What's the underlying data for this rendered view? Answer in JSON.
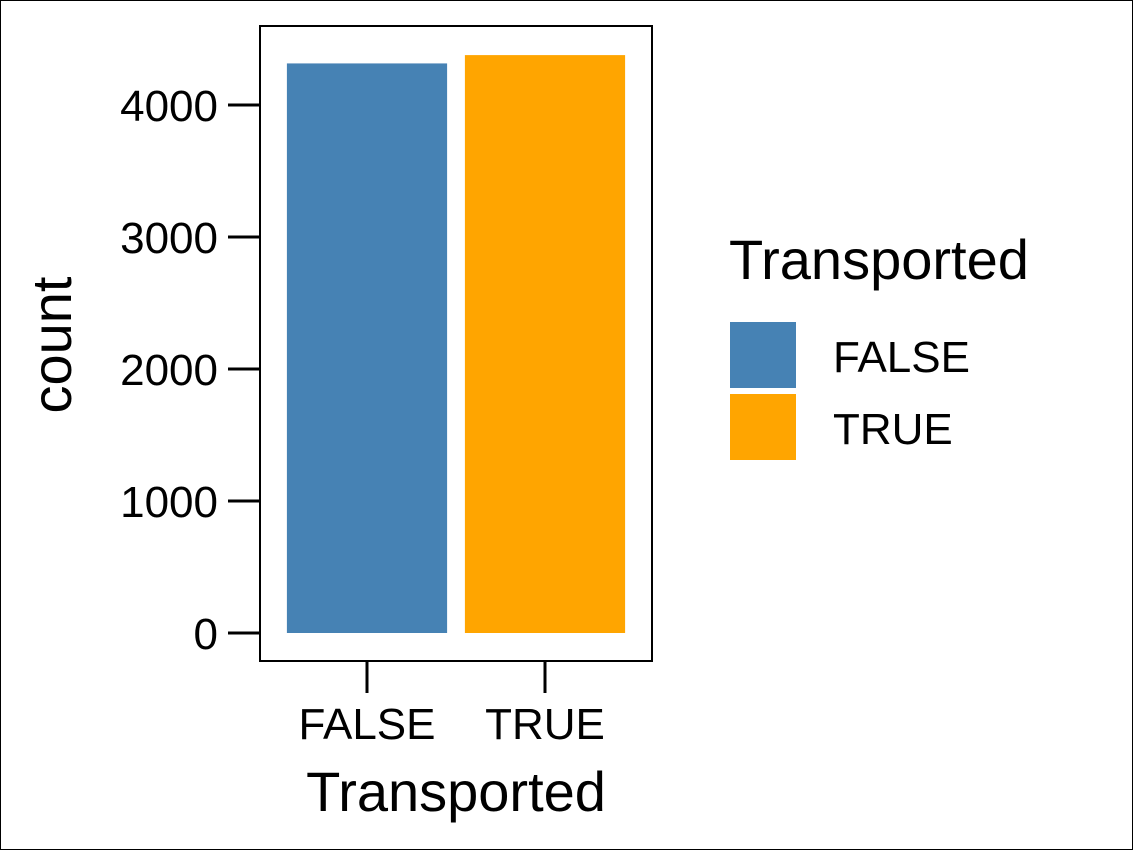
{
  "chart_data": {
    "type": "bar",
    "categories": [
      "FALSE",
      "TRUE"
    ],
    "values": [
      4315,
      4378
    ],
    "colors": [
      "#4682b4",
      "#ffa500"
    ],
    "xlabel": "Transported",
    "ylabel": "count",
    "ylim": [
      0,
      4590
    ],
    "yticks": [
      0,
      1000,
      2000,
      3000,
      4000
    ],
    "ytick_labels": [
      "0",
      "1000",
      "2000",
      "3000",
      "4000"
    ],
    "grid": false,
    "legend": {
      "title": "Transported",
      "placement": "right",
      "entries": [
        {
          "label": "FALSE",
          "color": "#4682b4"
        },
        {
          "label": "TRUE",
          "color": "#ffa500"
        }
      ]
    }
  }
}
